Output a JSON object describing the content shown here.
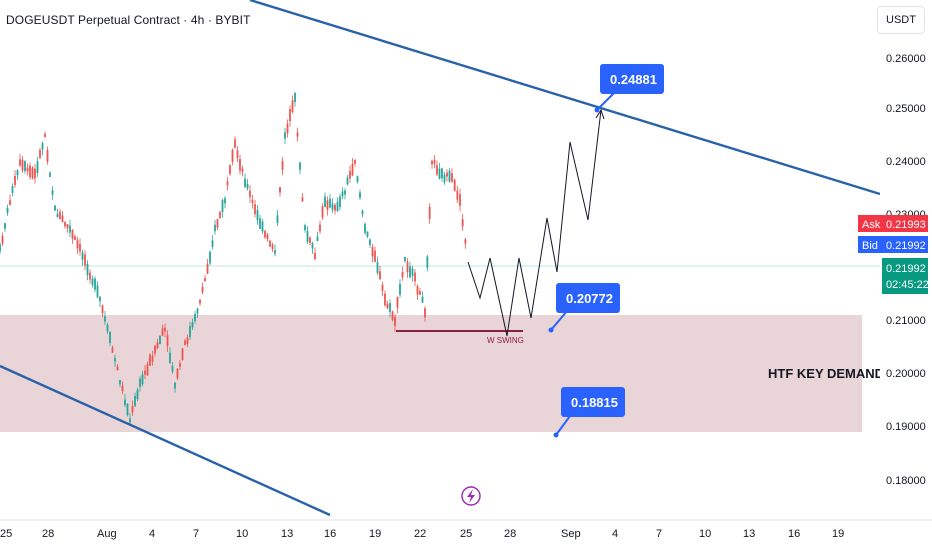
{
  "header": {
    "title": "DOGEUSDT Perpetual Contract · 4h · BYBIT"
  },
  "axis": {
    "currency_label": "USDT",
    "price_ticks": [
      "0.26000",
      "0.25000",
      "0.24000",
      "0.23000",
      "0.21000",
      "0.20000",
      "0.19000",
      "0.18000"
    ],
    "date_ticks": [
      "25",
      "28",
      "Aug",
      "4",
      "7",
      "10",
      "13",
      "16",
      "19",
      "22",
      "25",
      "28",
      "Sep",
      "4",
      "7",
      "10",
      "13",
      "16",
      "19"
    ]
  },
  "quote": {
    "ask_label": "Ask",
    "ask_value": "0.21993",
    "bid_label": "Bid",
    "bid_value": "0.21992",
    "last_value": "0.21992",
    "countdown": "02:45:22"
  },
  "annotations": {
    "target_callout": "0.24881",
    "swing_callout": "0.20772",
    "low_callout": "0.18815",
    "zone_label": "HTF KEY DEMAND",
    "swing_label": "W SWING"
  },
  "colors": {
    "up": "#26a69a",
    "down": "#ef5350",
    "trendline": "#2962a8",
    "zone": "#e7cfd3",
    "callout": "#2962ff",
    "ask": "#f23645",
    "last": "#089981"
  },
  "icons": {
    "flash": "lightning-bolt-icon"
  },
  "chart_data": {
    "type": "candlestick",
    "price_range": [
      0.175,
      0.265
    ],
    "demand_zone": [
      0.1888,
      0.2108
    ],
    "current_price": 0.21992
  }
}
